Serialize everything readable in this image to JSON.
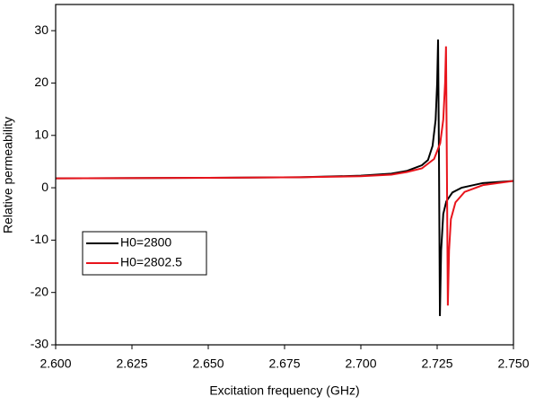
{
  "chart_data": {
    "type": "line",
    "x_label": "Excitation frequency (GHz)",
    "y_label": "Relative permeability",
    "xlim": [
      2.6,
      2.75
    ],
    "ylim": [
      -30,
      35
    ],
    "xticks": [
      {
        "value": 2.6,
        "label": "2.600"
      },
      {
        "value": 2.625,
        "label": "2.625"
      },
      {
        "value": 2.65,
        "label": "2.650"
      },
      {
        "value": 2.675,
        "label": "2.675"
      },
      {
        "value": 2.7,
        "label": "2.700"
      },
      {
        "value": 2.725,
        "label": "2.725"
      },
      {
        "value": 2.75,
        "label": "2.750"
      }
    ],
    "yticks": [
      -30,
      -20,
      -10,
      0,
      10,
      20,
      30
    ],
    "legend": "bottom-left",
    "series": [
      {
        "name": "H0=2800",
        "color": "#000000",
        "x": [
          2.6,
          2.65,
          2.68,
          2.7,
          2.71,
          2.715,
          2.72,
          2.722,
          2.7235,
          2.7245,
          2.725,
          2.7253,
          2.7256,
          2.7259,
          2.7263,
          2.727,
          2.728,
          2.73,
          2.733,
          2.74,
          2.75
        ],
        "values": [
          1.8,
          1.9,
          2.0,
          2.3,
          2.7,
          3.2,
          4.3,
          5.3,
          8.0,
          13,
          20,
          28.3,
          5,
          -24.5,
          -12,
          -5,
          -2.6,
          -0.9,
          0.0,
          0.9,
          1.3
        ]
      },
      {
        "name": "H0=2802.5",
        "color": "#e8141c",
        "x": [
          2.6,
          2.65,
          2.68,
          2.7,
          2.71,
          2.715,
          2.72,
          2.724,
          2.726,
          2.727,
          2.7276,
          2.7279,
          2.7282,
          2.7285,
          2.7289,
          2.7295,
          2.731,
          2.734,
          2.74,
          2.75
        ],
        "values": [
          1.8,
          1.9,
          2.0,
          2.2,
          2.5,
          3.0,
          3.7,
          5.5,
          8.5,
          13,
          20,
          27,
          3,
          -22.5,
          -12,
          -6,
          -2.8,
          -0.8,
          0.5,
          1.3
        ]
      }
    ]
  }
}
